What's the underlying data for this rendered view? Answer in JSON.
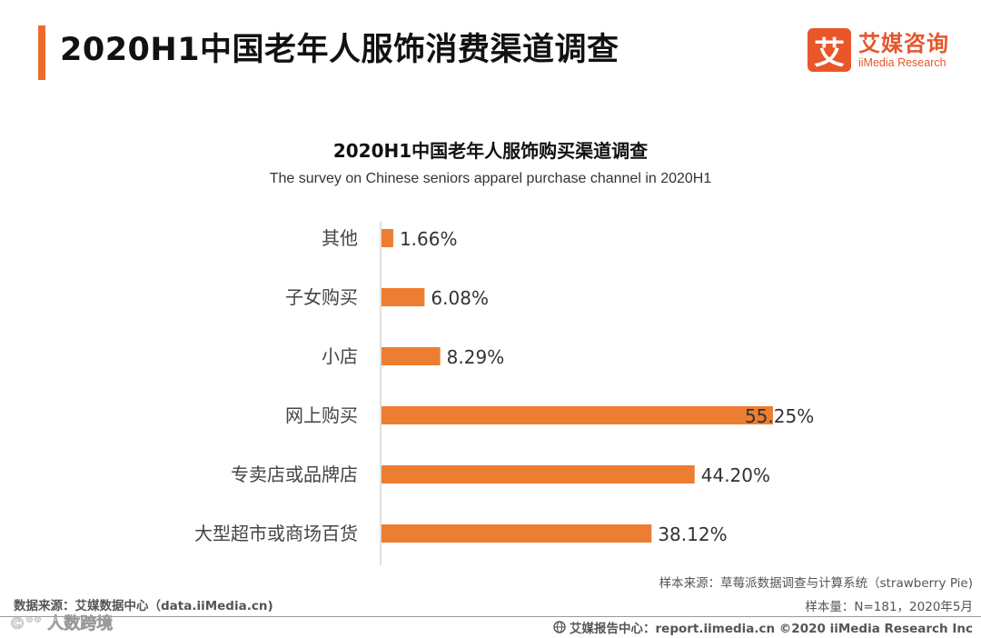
{
  "header": {
    "title": "2020H1中国老年人服饰消费渠道调查",
    "logo_cn": "艾媒咨询",
    "logo_en": "iiMedia Research",
    "logo_mark": "艾"
  },
  "chart_data": {
    "type": "bar",
    "orientation": "horizontal",
    "title": "2020H1中国老年人服饰购买渠道调查",
    "subtitle": "The survey  on Chinese seniors apparel purchase channel in 2020H1",
    "categories": [
      "其他",
      "子女购买",
      "小店",
      "网上购买",
      "专卖店或品牌店",
      "大型超市或商场百货"
    ],
    "values": [
      1.66,
      6.08,
      8.29,
      55.25,
      44.2,
      38.12
    ],
    "value_labels": [
      "1.66%",
      "6.08%",
      "8.29%",
      "55.25%",
      "44.20%",
      "38.12%"
    ],
    "unit": "%",
    "xlim": [
      0,
      100
    ],
    "bar_color": "#ed7d31",
    "grid": false,
    "legend": "none"
  },
  "footer": {
    "sample_source": "样本来源：草莓派数据调查与计算系统（strawberry Pie)",
    "data_source": "数据来源：艾媒数据中心（data.iiMedia.cn)",
    "sample_size": "样本量：N=181，2020年5月",
    "report_center": "艾媒报告中心：report.iimedia.cn  ©2020  iiMedia Research  Inc",
    "watermark": "©°° 人数跨境"
  },
  "colors": {
    "accent": "#ee6b2d",
    "brand": "#e8562a",
    "bar": "#ed7d31"
  }
}
